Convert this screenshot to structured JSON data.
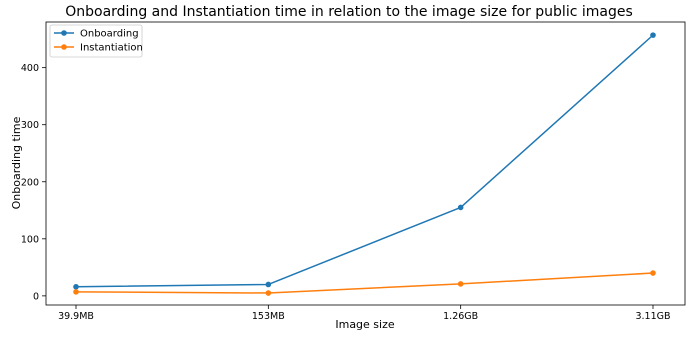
{
  "chart_data": {
    "type": "line",
    "title": "Onboarding and Instantiation time in relation to the image size for public images",
    "xlabel": "Image size",
    "ylabel": "Onboarding time",
    "categories": [
      "39.9MB",
      "153MB",
      "1.26GB",
      "3.11GB"
    ],
    "ylim": [
      -16,
      480
    ],
    "yticks": [
      0,
      100,
      200,
      300,
      400
    ],
    "grid": false,
    "legend_position": "top-left",
    "series": [
      {
        "name": "Onboarding",
        "color": "#1f77b4",
        "values": [
          16,
          20,
          155,
          457
        ]
      },
      {
        "name": "Instantiation",
        "color": "#ff7f0e",
        "values": [
          7,
          5,
          21,
          40
        ]
      }
    ]
  }
}
